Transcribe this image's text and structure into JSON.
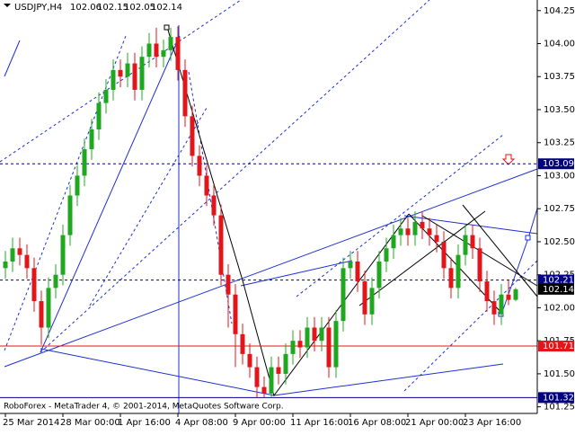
{
  "chart_data": {
    "type": "candlestick",
    "title": "USDJPY,H4",
    "open": [
      102.3,
      102.35,
      102.45,
      102.4,
      102.3,
      102.05,
      101.85,
      102.15,
      102.25,
      102.55,
      102.85,
      103.0,
      103.2,
      103.35,
      103.55,
      103.65,
      103.8,
      103.75,
      103.85,
      103.65,
      103.9,
      104.0,
      103.9,
      103.95,
      104.05,
      103.8,
      103.45,
      103.15,
      103.0,
      102.85,
      102.7,
      102.25,
      102.1,
      101.8,
      101.65,
      101.55,
      101.4,
      101.35,
      101.55,
      101.5,
      101.65,
      101.75,
      101.7,
      101.85,
      101.75,
      101.85,
      101.55,
      101.9,
      102.3,
      102.35,
      102.2,
      101.95,
      102.15,
      102.35,
      102.45,
      102.55,
      102.6,
      102.55,
      102.65,
      102.6,
      102.55,
      102.5,
      102.3,
      102.15,
      102.4,
      102.55,
      102.45,
      102.2,
      102.05,
      101.95,
      102.1,
      102.06
    ],
    "high": [
      102.43,
      102.53,
      102.53,
      102.48,
      102.38,
      102.13,
      102.23,
      102.33,
      102.63,
      102.93,
      103.08,
      103.28,
      103.43,
      103.63,
      103.73,
      103.88,
      103.88,
      103.93,
      103.93,
      103.98,
      104.08,
      104.12,
      104.03,
      104.12,
      104.13,
      103.88,
      103.53,
      103.23,
      103.08,
      102.93,
      102.78,
      102.33,
      102.18,
      101.88,
      101.73,
      101.63,
      101.48,
      101.63,
      101.63,
      101.73,
      101.83,
      101.83,
      101.93,
      101.93,
      101.93,
      101.93,
      101.98,
      102.38,
      102.43,
      102.43,
      102.28,
      102.23,
      102.43,
      102.53,
      102.63,
      102.68,
      102.68,
      102.73,
      102.73,
      102.68,
      102.63,
      102.58,
      102.38,
      102.48,
      102.63,
      102.63,
      102.53,
      102.28,
      102.13,
      102.18,
      102.21,
      102.15
    ],
    "low": [
      102.22,
      102.27,
      102.32,
      102.22,
      101.97,
      101.72,
      101.77,
      102.07,
      102.17,
      102.47,
      102.77,
      102.92,
      103.12,
      103.27,
      103.47,
      103.57,
      103.67,
      103.67,
      103.57,
      103.57,
      103.82,
      103.82,
      103.82,
      103.87,
      103.72,
      103.37,
      103.07,
      102.92,
      102.77,
      102.62,
      102.17,
      101.85,
      101.55,
      101.57,
      101.47,
      101.32,
      101.32,
      101.32,
      101.42,
      101.42,
      101.57,
      101.62,
      101.62,
      101.67,
      101.67,
      101.47,
      101.47,
      101.82,
      102.22,
      102.12,
      101.87,
      101.87,
      102.07,
      102.27,
      102.37,
      102.47,
      102.47,
      102.47,
      102.52,
      102.47,
      102.42,
      102.22,
      102.07,
      102.07,
      102.32,
      102.37,
      102.12,
      101.97,
      101.87,
      101.87,
      102.02,
      102.05
    ],
    "close": [
      102.35,
      102.45,
      102.4,
      102.3,
      102.05,
      101.85,
      102.15,
      102.25,
      102.55,
      102.85,
      103.0,
      103.2,
      103.35,
      103.55,
      103.65,
      103.8,
      103.75,
      103.85,
      103.65,
      103.9,
      104.0,
      103.9,
      103.95,
      104.05,
      103.8,
      103.45,
      103.15,
      103.0,
      102.85,
      102.7,
      102.25,
      102.1,
      101.8,
      101.65,
      101.55,
      101.4,
      101.35,
      101.55,
      101.5,
      101.65,
      101.75,
      101.7,
      101.85,
      101.75,
      101.85,
      101.55,
      101.9,
      102.3,
      102.35,
      102.2,
      101.95,
      102.15,
      102.35,
      102.45,
      102.55,
      102.6,
      102.55,
      102.65,
      102.6,
      102.55,
      102.5,
      102.3,
      102.15,
      102.4,
      102.55,
      102.45,
      102.2,
      102.05,
      101.95,
      102.1,
      102.06,
      102.14
    ],
    "up_color": "#1fa81f",
    "down_color": "#e0161b",
    "ylim": [
      101.2,
      104.33
    ],
    "yticks": [
      104.25,
      {
        "value": 104.0,
        "label": "104.00"
      },
      103.75,
      {
        "value": 103.5,
        "label": "103.50"
      },
      103.25,
      {
        "value": 103.0,
        "label": "103.00"
      },
      102.75,
      {
        "value": 102.5,
        "label": "102.50"
      },
      102.25,
      {
        "value": 102.0,
        "label": "102.00"
      },
      101.75,
      {
        "value": 101.5,
        "label": "101.50"
      },
      101.25
    ],
    "xticks": [
      {
        "value": 0,
        "label": "25 Mar 2014"
      },
      {
        "value": 8,
        "label": "28 Mar 00:00"
      },
      {
        "value": 16,
        "label": "1 Apr 16:00"
      },
      {
        "value": 24,
        "label": "4 Apr 08:00"
      },
      {
        "value": 32,
        "label": "9 Apr 00:00"
      },
      {
        "value": 40,
        "label": "11 Apr 16:00"
      },
      {
        "value": 48,
        "label": "16 Apr 08:00"
      },
      {
        "value": 56,
        "label": "21 Apr 00:00"
      },
      {
        "value": 64,
        "label": "23 Apr 16:00"
      }
    ],
    "levels": [
      {
        "value": 103.09,
        "color": "#000080",
        "style": "dashed"
      },
      {
        "value": 102.21,
        "color": "#00008b",
        "style": "dashed"
      },
      {
        "value": 102.14,
        "color": "#000000",
        "style": "none"
      },
      {
        "value": 101.71,
        "color": "#e0161b",
        "style": "solid"
      },
      {
        "value": 101.32,
        "color": "#000080",
        "style": "solid"
      }
    ],
    "footer": "RoboForex - MetaTrader 4, © 2001-2014, MetaQuotes Software Corp."
  }
}
